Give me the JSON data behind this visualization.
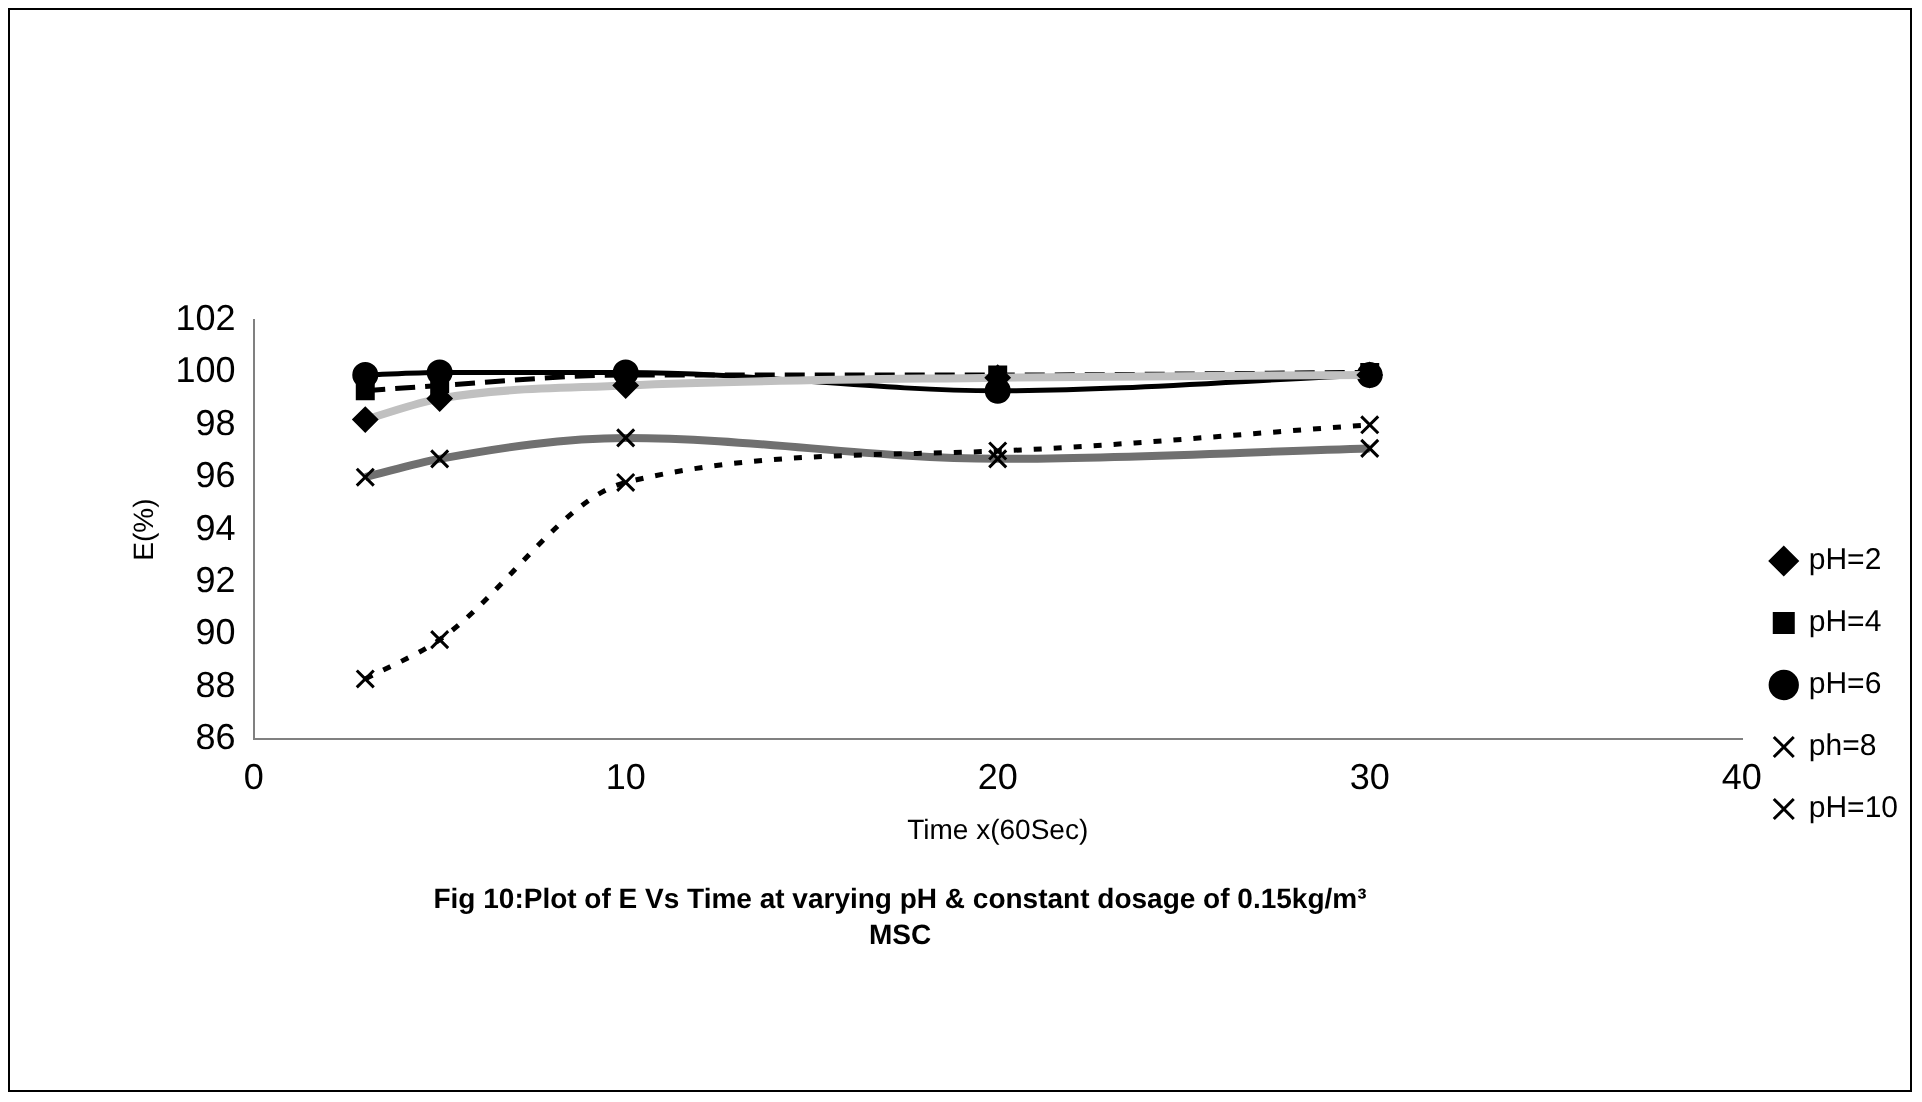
{
  "chart_data": {
    "type": "line",
    "title": "Fig 10:Plot of E Vs Time at varying pH & constant dosage of 0.15kg/m³ MSC",
    "xlabel": "Time x(60Sec)",
    "ylabel": "E(%)",
    "x": [
      3,
      5,
      10,
      20,
      30
    ],
    "series": [
      {
        "name": "pH=2",
        "color": "#c0c0c0",
        "marker": "diamond",
        "line_style": "solid",
        "values": [
          98.2,
          99.0,
          99.5,
          99.8,
          99.9
        ]
      },
      {
        "name": "pH=4",
        "color": "#000000",
        "marker": "square",
        "line_style": "dashed",
        "values": [
          99.3,
          99.5,
          99.9,
          99.9,
          100.0
        ]
      },
      {
        "name": "pH=6",
        "color": "#000000",
        "marker": "circle",
        "line_style": "solid",
        "values": [
          99.9,
          100.0,
          100.0,
          99.3,
          99.9
        ]
      },
      {
        "name": "ph=8",
        "color": "#000000",
        "marker": "cross",
        "line_style": "dotted",
        "values": [
          88.3,
          89.8,
          95.8,
          97.0,
          98.0
        ]
      },
      {
        "name": "pH=10",
        "color": "#707070",
        "marker": "cross",
        "line_style": "solid",
        "values": [
          96.0,
          96.7,
          97.5,
          96.7,
          97.1
        ]
      }
    ],
    "xlim": [
      0,
      40
    ],
    "xticks": [
      0,
      10,
      20,
      30,
      40
    ],
    "ylim": [
      86,
      102
    ],
    "yticks": [
      86,
      88,
      90,
      92,
      94,
      96,
      98,
      100,
      102
    ],
    "grid": false,
    "legend": "right"
  }
}
